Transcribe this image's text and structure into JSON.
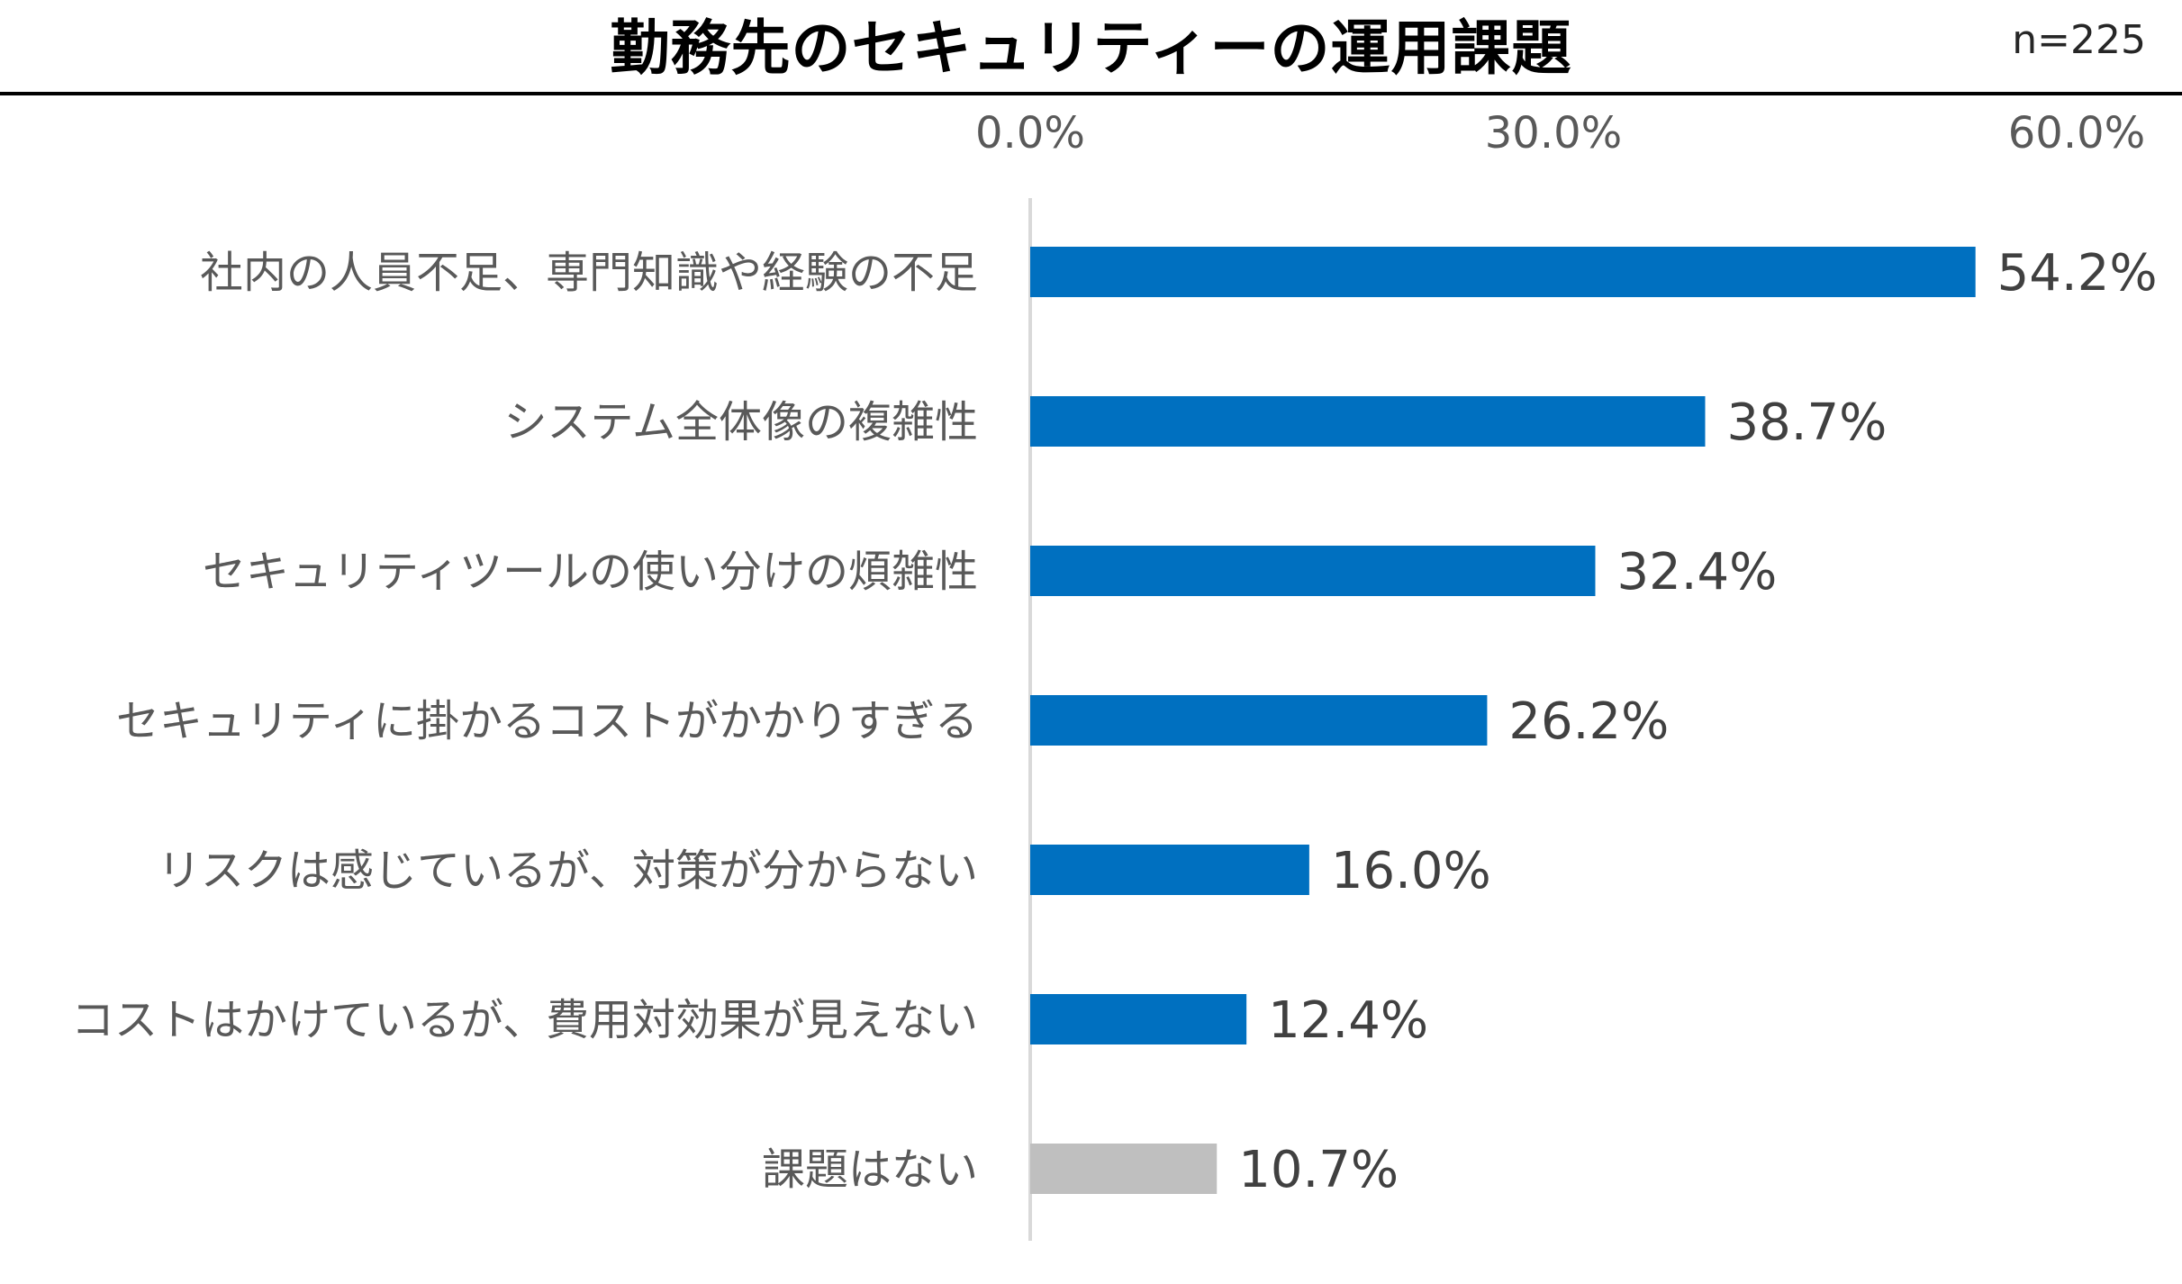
{
  "title": "勤務先のセキュリティーの運用課題",
  "sample_size": "n=225",
  "chart_data": {
    "type": "bar",
    "orientation": "horizontal",
    "categories": [
      "社内の人員不足、専門知識や経験の不足",
      "システム全体像の複雑性",
      "セキュリティツールの使い分けの煩雑性",
      "セキュリティに掛かるコストがかかりすぎる",
      "リスクは感じているが、対策が分からない",
      "コストはかけているが、費用対効果が見えない",
      "課題はない"
    ],
    "values": [
      54.2,
      38.7,
      32.4,
      26.2,
      16.0,
      12.4,
      10.7
    ],
    "value_labels": [
      "54.2%",
      "38.7%",
      "32.4%",
      "26.2%",
      "16.0%",
      "12.4%",
      "10.7%"
    ],
    "bar_colors": [
      "#0070C0",
      "#0070C0",
      "#0070C0",
      "#0070C0",
      "#0070C0",
      "#0070C0",
      "#BFBFBF"
    ],
    "xlim": [
      0,
      60
    ],
    "xticks": [
      "0.0%",
      "30.0%",
      "60.0%"
    ],
    "grid": false,
    "legend": "none"
  }
}
